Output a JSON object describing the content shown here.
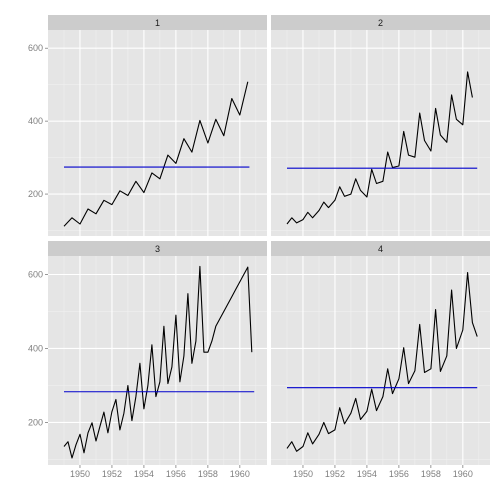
{
  "chart_data": {
    "type": "line",
    "layout": "facet-grid-2x2",
    "x_ticks": [
      1950,
      1952,
      1954,
      1956,
      1958,
      1960
    ],
    "y_ticks": [
      200,
      400,
      600
    ],
    "xlim": [
      1948.0,
      1961.7
    ],
    "ylim": [
      85,
      650
    ],
    "grid": true,
    "colors": {
      "series": "#000000",
      "mean_line": "#0000cc",
      "panel": "#e5e5e5",
      "strip": "#cccccc",
      "grid_major": "#ffffff",
      "grid_minor": "#f0f0f0"
    },
    "panels": [
      {
        "label": "1",
        "mean": 274,
        "mean_x_range": [
          1949.0,
          1960.6
        ],
        "x": [
          1949.0,
          1949.5,
          1950.0,
          1950.5,
          1951.0,
          1951.5,
          1952.0,
          1952.5,
          1953.0,
          1953.5,
          1954.0,
          1954.5,
          1955.0,
          1955.5,
          1956.0,
          1956.5,
          1957.0,
          1957.5,
          1958.0,
          1958.5,
          1959.0,
          1959.5,
          1960.0,
          1960.5
        ],
        "y": [
          112,
          135,
          118,
          159,
          146,
          183,
          171,
          209,
          196,
          235,
          204,
          258,
          242,
          307,
          284,
          352,
          315,
          402,
          340,
          405,
          360,
          462,
          417,
          508
        ]
      },
      {
        "label": "2",
        "mean": 271,
        "mean_x_range": [
          1949.0,
          1960.9
        ],
        "x": [
          1949.0,
          1949.3,
          1949.6,
          1950.0,
          1950.3,
          1950.6,
          1951.0,
          1951.3,
          1951.6,
          1952.0,
          1952.3,
          1952.6,
          1953.0,
          1953.3,
          1953.6,
          1954.0,
          1954.3,
          1954.6,
          1955.0,
          1955.3,
          1955.6,
          1956.0,
          1956.3,
          1956.6,
          1957.0,
          1957.3,
          1957.6,
          1958.0,
          1958.3,
          1958.6,
          1959.0,
          1959.3,
          1959.6,
          1960.0,
          1960.3,
          1960.6
        ],
        "y": [
          118,
          135,
          121,
          130,
          150,
          135,
          155,
          178,
          163,
          183,
          220,
          194,
          200,
          242,
          210,
          192,
          268,
          229,
          235,
          315,
          273,
          277,
          372,
          307,
          301,
          422,
          347,
          318,
          435,
          362,
          342,
          472,
          405,
          390,
          535,
          465
        ]
      },
      {
        "label": "3",
        "mean": 283,
        "mean_x_range": [
          1949.0,
          1960.9
        ],
        "x": [
          1949.0,
          1949.25,
          1949.5,
          1949.75,
          1950.0,
          1950.25,
          1950.5,
          1950.75,
          1951.0,
          1951.25,
          1951.5,
          1951.75,
          1952.0,
          1952.25,
          1952.5,
          1952.75,
          1953.0,
          1953.25,
          1953.5,
          1953.75,
          1954.0,
          1954.25,
          1954.5,
          1954.75,
          1955.0,
          1955.25,
          1955.5,
          1955.75,
          1956.0,
          1956.25,
          1956.5,
          1956.75,
          1957.0,
          1957.25,
          1957.5,
          1957.75,
          1958.0,
          1958.25,
          1958.5,
          1958.75,
          1959.0,
          1959.25,
          1959.5,
          1959.75,
          1960.0,
          1960.25,
          1960.5,
          1960.75
        ],
        "y": [
          135,
          148,
          104,
          140,
          168,
          118,
          172,
          199,
          150,
          190,
          228,
          172,
          229,
          262,
          180,
          225,
          300,
          205,
          270,
          360,
          237,
          300,
          410,
          270,
          310,
          460,
          305,
          350,
          490,
          310,
          380,
          548,
          360,
          420,
          622,
          390,
          390,
          420,
          460,
          480,
          500,
          520,
          540,
          560,
          580,
          600,
          620,
          390
        ]
      },
      {
        "label": "4",
        "mean": 294,
        "mean_x_range": [
          1949.0,
          1960.9
        ],
        "x": [
          1949.0,
          1949.3,
          1949.6,
          1950.0,
          1950.3,
          1950.6,
          1951.0,
          1951.3,
          1951.6,
          1952.0,
          1952.3,
          1952.6,
          1953.0,
          1953.3,
          1953.6,
          1954.0,
          1954.3,
          1954.6,
          1955.0,
          1955.3,
          1955.6,
          1956.0,
          1956.3,
          1956.6,
          1957.0,
          1957.3,
          1957.6,
          1958.0,
          1958.3,
          1958.6,
          1959.0,
          1959.3,
          1959.6,
          1960.0,
          1960.3,
          1960.6,
          1960.9
        ],
        "y": [
          130,
          148,
          122,
          135,
          172,
          142,
          168,
          200,
          170,
          180,
          240,
          196,
          225,
          265,
          208,
          230,
          290,
          232,
          270,
          345,
          278,
          318,
          402,
          305,
          340,
          465,
          335,
          345,
          505,
          338,
          380,
          558,
          400,
          450,
          605,
          470,
          432
        ]
      }
    ]
  }
}
